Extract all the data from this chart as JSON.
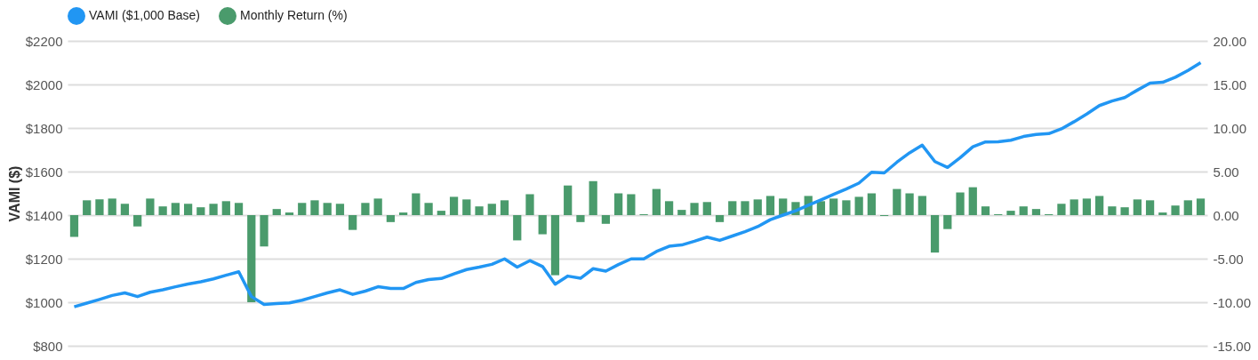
{
  "chart_data": {
    "type": "bar",
    "categories": [
      null,
      null,
      null,
      null,
      null,
      null,
      null,
      null,
      null,
      null,
      null,
      null,
      null,
      null,
      null,
      null,
      null,
      null,
      null,
      null,
      null,
      null,
      null,
      null,
      null,
      null,
      null,
      null,
      null,
      null,
      null,
      null,
      null,
      null,
      null,
      null,
      null,
      null,
      null,
      null,
      null,
      null,
      null,
      null,
      null,
      null,
      null,
      null,
      null,
      null,
      null,
      null,
      null,
      null,
      null,
      null,
      null,
      null,
      null,
      null,
      null,
      null,
      null,
      null,
      null,
      null,
      null,
      null,
      null,
      null,
      null,
      null,
      null,
      null,
      null,
      null,
      null,
      null,
      null,
      null,
      null,
      null,
      null,
      null,
      null,
      null,
      null,
      null,
      null,
      null
    ],
    "series": [
      {
        "name": "VAMI ($1,000 Base)",
        "type": "line",
        "axis": "y",
        "color": "#2196f3",
        "marker": "none",
        "line_style": "solid",
        "values": [
          979,
          996,
          1013,
          1031,
          1043,
          1026,
          1046,
          1057,
          1071,
          1084,
          1094,
          1107,
          1124,
          1140,
          1026,
          990,
          994,
          997,
          1009,
          1026,
          1043,
          1057,
          1036,
          1051,
          1071,
          1063,
          1063,
          1091,
          1104,
          1109,
          1130,
          1150,
          1161,
          1174,
          1199,
          1161,
          1191,
          1164,
          1083,
          1120,
          1110,
          1154,
          1143,
          1173,
          1199,
          1199,
          1233,
          1257,
          1263,
          1280,
          1299,
          1284,
          1304,
          1324,
          1347,
          1379,
          1400,
          1420,
          1445,
          1470,
          1495,
          1520,
          1547,
          1597,
          1594,
          1643,
          1686,
          1721,
          1646,
          1619,
          1664,
          1714,
          1736,
          1737,
          1744,
          1761,
          1770,
          1774,
          1796,
          1829,
          1864,
          1903,
          1924,
          1940,
          1974,
          2006,
          2010,
          2033,
          2064,
          2100
        ]
      },
      {
        "name": "Monthly Return (%)",
        "axis": "y2",
        "color": "#4a9b6c",
        "values": [
          -2.5,
          1.7,
          1.8,
          1.9,
          1.3,
          -1.3,
          1.9,
          1.0,
          1.4,
          1.3,
          0.9,
          1.3,
          1.6,
          1.4,
          -10.0,
          -3.6,
          0.7,
          0.3,
          1.4,
          1.7,
          1.4,
          1.3,
          -1.7,
          1.4,
          1.9,
          -0.8,
          0.3,
          2.5,
          1.4,
          0.5,
          2.1,
          1.8,
          1.0,
          1.3,
          1.7,
          -2.9,
          2.4,
          -2.2,
          -6.9,
          3.4,
          -0.8,
          3.9,
          -1.0,
          2.5,
          2.4,
          0.1,
          3.0,
          1.6,
          0.6,
          1.4,
          1.5,
          -0.8,
          1.6,
          1.6,
          1.8,
          2.2,
          1.9,
          1.5,
          2.2,
          1.6,
          1.9,
          1.7,
          2.1,
          2.5,
          -0.1,
          3.0,
          2.5,
          2.2,
          -4.3,
          -1.6,
          2.6,
          3.2,
          1.0,
          0.1,
          0.5,
          1.0,
          0.7,
          0.1,
          1.3,
          1.8,
          1.9,
          2.2,
          1.0,
          0.9,
          1.8,
          1.7,
          0.3,
          1.1,
          1.7,
          1.9
        ]
      }
    ],
    "ylabel": "VAMI ($)",
    "ylim": [
      800,
      2200
    ],
    "yticks": [
      {
        "value": 800,
        "label": "$800"
      },
      {
        "value": 1000,
        "label": "$1000"
      },
      {
        "value": 1200,
        "label": "$1200"
      },
      {
        "value": 1400,
        "label": "$1400"
      },
      {
        "value": 1600,
        "label": "$1600"
      },
      {
        "value": 1800,
        "label": "$1800"
      },
      {
        "value": 2000,
        "label": "$2000"
      },
      {
        "value": 2200,
        "label": "$2200"
      }
    ],
    "y2lim": [
      -15,
      20
    ],
    "y2ticks": [
      {
        "value": -15,
        "label": "-15.00"
      },
      {
        "value": -10,
        "label": "-10.00"
      },
      {
        "value": -5,
        "label": "-5.00"
      },
      {
        "value": 0,
        "label": "0.00"
      },
      {
        "value": 5,
        "label": "5.00"
      },
      {
        "value": 10,
        "label": "10.00"
      },
      {
        "value": 15,
        "label": "15.00"
      },
      {
        "value": 20,
        "label": "20.00"
      }
    ],
    "grid": "y",
    "legend": "top left"
  }
}
